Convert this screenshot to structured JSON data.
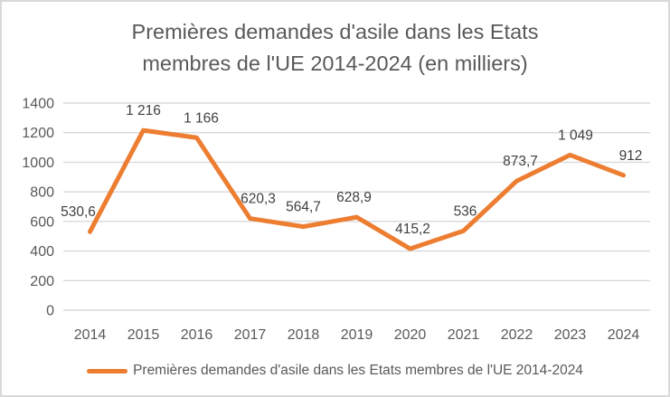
{
  "window": {
    "background": "#ffffff",
    "border_color": "#d9d9d9"
  },
  "chart_data": {
    "type": "line",
    "title": "Premières demandes d'asile dans les Etats membres de l'UE 2014-2024 (en milliers)",
    "title_lines": [
      "Premières demandes d'asile dans les Etats",
      "membres de l'UE 2014-2024 (en milliers)"
    ],
    "categories": [
      "2014",
      "2015",
      "2016",
      "2017",
      "2018",
      "2019",
      "2020",
      "2021",
      "2022",
      "2023",
      "2024"
    ],
    "series": [
      {
        "name": "Premières demandes d'asile dans les Etats membres de l'UE 2014-2024",
        "values": [
          530.6,
          1216,
          1166,
          620.3,
          564.7,
          628.9,
          415.2,
          536,
          873.7,
          1049,
          912
        ],
        "labels": [
          "530,6",
          "1 216",
          "1 166",
          "620,3",
          "564,7",
          "628,9",
          "415,2",
          "536",
          "873,7",
          "1 049",
          "912"
        ],
        "color": "#ED7D31"
      }
    ],
    "xlabel": "",
    "ylabel": "",
    "ylim": [
      0,
      1400
    ],
    "ytick_step": 200,
    "yticks": [
      "0",
      "200",
      "400",
      "600",
      "800",
      "1000",
      "1200",
      "1400"
    ],
    "grid": true,
    "legend_position": "bottom",
    "colors": {
      "line": "#ED7D31",
      "gridline": "#D9D9D9",
      "axis_text": "#595959",
      "data_label": "#404040",
      "title_text": "#595959"
    }
  }
}
